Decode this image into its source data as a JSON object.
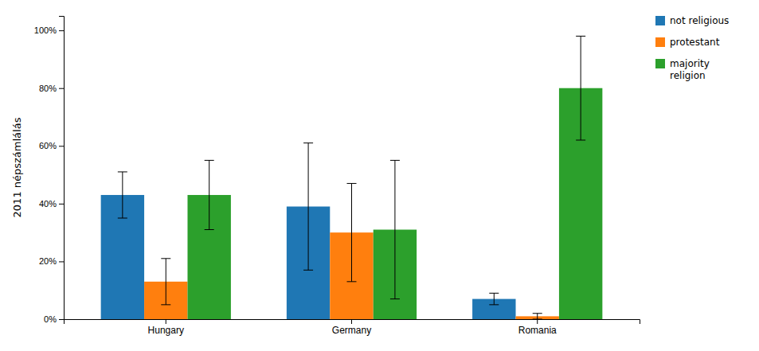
{
  "chart_data": {
    "type": "bar",
    "categories": [
      "Hungary",
      "Germany",
      "Romania"
    ],
    "series": [
      {
        "name": "not religious",
        "values": [
          0.43,
          0.39,
          0.07
        ],
        "errors": [
          0.08,
          0.22,
          0.02
        ]
      },
      {
        "name": "protestant",
        "values": [
          0.13,
          0.3,
          0.01
        ],
        "errors": [
          0.08,
          0.17,
          0.01
        ]
      },
      {
        "name": "majority\nreligion",
        "values": [
          0.43,
          0.31,
          0.8
        ],
        "errors": [
          0.12,
          0.24,
          0.18
        ]
      }
    ],
    "ylabel": "2011 népszámlálás",
    "ylim": [
      0,
      1.05
    ],
    "yticks": [
      {
        "value": 0,
        "label": "0%"
      },
      {
        "value": 0.2,
        "label": "20%"
      },
      {
        "value": 0.4,
        "label": "40%"
      },
      {
        "value": 0.6,
        "label": "60%"
      },
      {
        "value": 0.8,
        "label": "80%"
      },
      {
        "value": 1.0,
        "label": "100%"
      }
    ],
    "grid": false,
    "legend": "upper right"
  }
}
